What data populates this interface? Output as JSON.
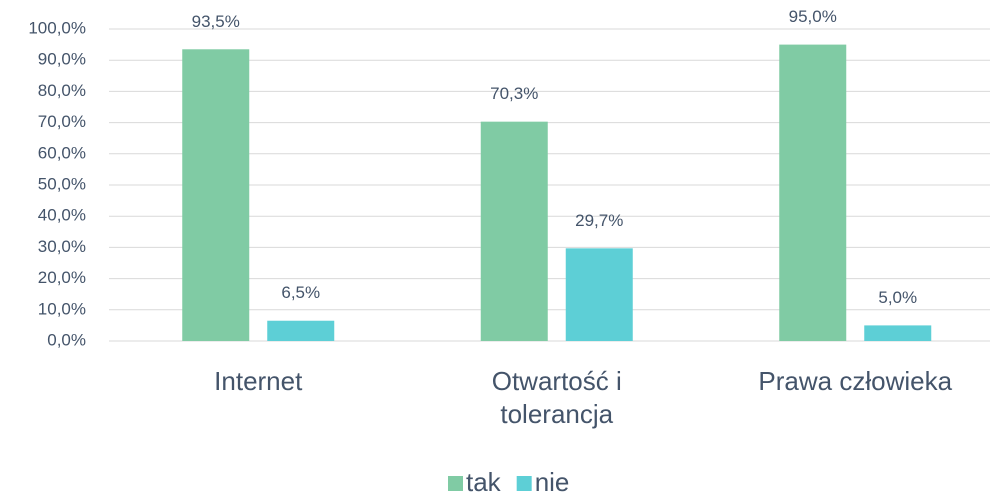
{
  "chart_data": {
    "type": "bar",
    "categories": [
      "Internet",
      "Otwartość i tolerancja",
      "Prawa człowieka"
    ],
    "series": [
      {
        "name": "tak",
        "color": "#80cba4",
        "values": [
          93.5,
          70.3,
          95.0
        ],
        "value_labels": [
          "93,5%",
          "70,3%",
          "95,0%"
        ]
      },
      {
        "name": "nie",
        "color": "#5dcfd6",
        "values": [
          6.5,
          29.7,
          5.0
        ],
        "value_labels": [
          "6,5%",
          "29,7%",
          "5,0%"
        ]
      }
    ],
    "ylim": [
      0,
      100
    ],
    "yticks": [
      {
        "value": 0,
        "label": "0,0%"
      },
      {
        "value": 10,
        "label": "10,0%"
      },
      {
        "value": 20,
        "label": "20,0%"
      },
      {
        "value": 30,
        "label": "30,0%"
      },
      {
        "value": 40,
        "label": "40,0%"
      },
      {
        "value": 50,
        "label": "50,0%"
      },
      {
        "value": 60,
        "label": "60,0%"
      },
      {
        "value": 70,
        "label": "70,0%"
      },
      {
        "value": 80,
        "label": "80,0%"
      },
      {
        "value": 90,
        "label": "90,0%"
      },
      {
        "value": 100,
        "label": "100,0%"
      }
    ],
    "grid": true,
    "legend": "bottom"
  }
}
